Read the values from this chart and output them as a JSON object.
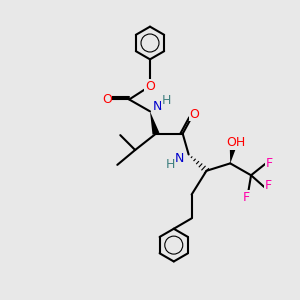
{
  "background_color": "#e8e8e8",
  "bond_color": "#000000",
  "bond_width": 1.5,
  "atom_colors": {
    "C": "#000000",
    "N": "#0000cc",
    "O": "#ff0000",
    "F": "#ff00aa",
    "H": "#408080"
  },
  "font_size": 9,
  "fig_size": [
    3.0,
    3.0
  ],
  "dpi": 100
}
